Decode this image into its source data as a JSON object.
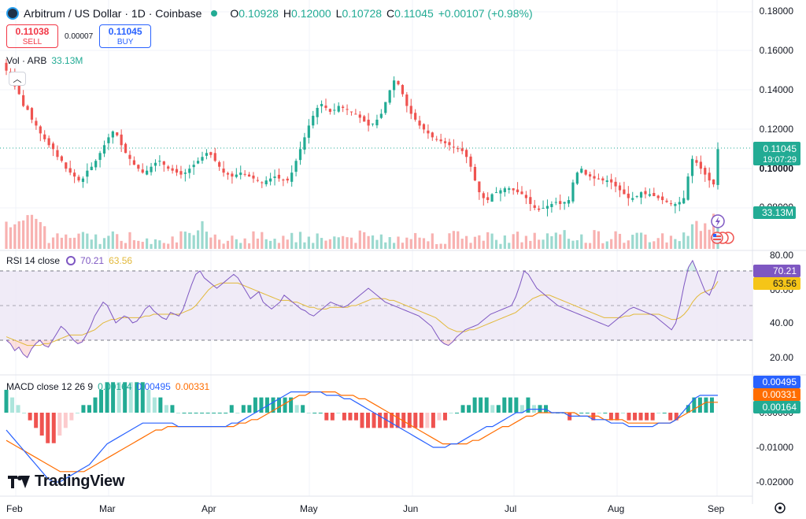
{
  "header": {
    "title": "Arbitrum / US Dollar · 1D · Coinbase",
    "open_label": "O",
    "open": "0.10928",
    "high_label": "H",
    "high": "0.12000",
    "low_label": "L",
    "low": "0.10728",
    "close_label": "C",
    "close": "0.11045",
    "change": "+0.00107 (+0.98%)"
  },
  "trade": {
    "sell_price": "0.11038",
    "sell_label": "SELL",
    "spread": "0.00007",
    "buy_price": "0.11045",
    "buy_label": "BUY"
  },
  "volume": {
    "label": "Vol · ARB",
    "value": "33.13M"
  },
  "rsi": {
    "label": "RSI 14 close",
    "rsi_value": "70.21",
    "ma_value": "63.56"
  },
  "macd": {
    "label": "MACD close 12 26 9",
    "hist": "0.00164",
    "macd": "0.00495",
    "signal": "0.00331"
  },
  "price_axis": {
    "ticks": [
      "0.18000",
      "0.16000",
      "0.14000",
      "0.12000",
      "0.10000",
      "0.08000"
    ],
    "last_price": "0.11045",
    "countdown": "19:07:29",
    "volume_tag": "33.13M"
  },
  "rsi_axis": {
    "ticks": [
      "80.00",
      "60.00",
      "40.00",
      "20.00"
    ],
    "rsi_tag": "70.21",
    "ma_tag": "63.56"
  },
  "macd_axis": {
    "ticks": [
      "0.00000",
      "-0.01000",
      "-0.02000"
    ],
    "macd_tag": "0.00495",
    "signal_tag": "0.00331",
    "hist_tag": "0.00164"
  },
  "time_axis": {
    "labels": [
      "Feb",
      "Mar",
      "Apr",
      "May",
      "Jun",
      "Jul",
      "Aug",
      "Sep"
    ]
  },
  "brand": {
    "name": "TradingView"
  },
  "colors": {
    "up": "#22ab94",
    "down": "#ef5350",
    "rsi": "#7e57c2",
    "rsi_ma": "#e2b93b",
    "macd": "#2962ff",
    "signal": "#ff6d00",
    "band": "#ede7f6"
  },
  "chart_data": [
    {
      "type": "candlestick",
      "title": "Arbitrum / US Dollar · 1D · Coinbase",
      "x_range": [
        "Feb",
        "Sep"
      ],
      "ylim": [
        0.08,
        0.18
      ],
      "approximate_daily_closes": [
        0.15,
        0.148,
        0.142,
        0.138,
        0.132,
        0.13,
        0.125,
        0.122,
        0.118,
        0.115,
        0.112,
        0.11,
        0.106,
        0.104,
        0.1,
        0.098,
        0.096,
        0.094,
        0.095,
        0.099,
        0.101,
        0.104,
        0.108,
        0.112,
        0.116,
        0.119,
        0.117,
        0.112,
        0.108,
        0.105,
        0.102,
        0.1,
        0.098,
        0.099,
        0.101,
        0.103,
        0.104,
        0.102,
        0.1,
        0.099,
        0.098,
        0.097,
        0.098,
        0.1,
        0.102,
        0.104,
        0.106,
        0.108,
        0.107,
        0.104,
        0.101,
        0.098,
        0.097,
        0.096,
        0.097,
        0.098,
        0.097,
        0.096,
        0.095,
        0.094,
        0.093,
        0.094,
        0.095,
        0.096,
        0.095,
        0.094,
        0.094,
        0.098,
        0.104,
        0.11,
        0.116,
        0.122,
        0.127,
        0.131,
        0.133,
        0.131,
        0.129,
        0.13,
        0.132,
        0.131,
        0.13,
        0.129,
        0.128,
        0.126,
        0.124,
        0.122,
        0.123,
        0.125,
        0.128,
        0.134,
        0.14,
        0.145,
        0.143,
        0.138,
        0.132,
        0.128,
        0.125,
        0.122,
        0.12,
        0.118,
        0.116,
        0.115,
        0.114,
        0.113,
        0.112,
        0.111,
        0.11,
        0.109,
        0.106,
        0.101,
        0.094,
        0.088,
        0.085,
        0.084,
        0.087,
        0.088,
        0.089,
        0.09,
        0.09,
        0.089,
        0.088,
        0.087,
        0.085,
        0.082,
        0.08,
        0.079,
        0.08,
        0.081,
        0.082,
        0.083,
        0.082,
        0.083,
        0.084,
        0.093,
        0.098,
        0.1,
        0.097,
        0.096,
        0.095,
        0.095,
        0.094,
        0.094,
        0.093,
        0.091,
        0.089,
        0.087,
        0.085,
        0.085,
        0.086,
        0.088,
        0.087,
        0.087,
        0.086,
        0.085,
        0.084,
        0.083,
        0.082,
        0.082,
        0.083,
        0.085,
        0.096,
        0.105,
        0.103,
        0.1,
        0.097,
        0.094,
        0.092,
        0.11
      ]
    },
    {
      "type": "line",
      "title": "RSI 14 close",
      "ylim": [
        15,
        85
      ],
      "series": [
        {
          "name": "RSI",
          "values": [
            30,
            28,
            24,
            26,
            22,
            20,
            25,
            28,
            30,
            27,
            26,
            30,
            34,
            38,
            36,
            33,
            30,
            28,
            29,
            33,
            38,
            44,
            48,
            52,
            50,
            45,
            40,
            42,
            44,
            43,
            40,
            41,
            44,
            48,
            50,
            47,
            45,
            43,
            42,
            46,
            45,
            44,
            48,
            55,
            62,
            68,
            70,
            66,
            64,
            62,
            60,
            62,
            64,
            66,
            68,
            66,
            62,
            58,
            54,
            56,
            58,
            52,
            50,
            48,
            50,
            52,
            56,
            54,
            52,
            50,
            48,
            47,
            45,
            44,
            46,
            48,
            50,
            52,
            51,
            50,
            49,
            50,
            52,
            54,
            56,
            58,
            60,
            58,
            56,
            54,
            52,
            51,
            50,
            49,
            48,
            47,
            46,
            45,
            44,
            42,
            40,
            38,
            34,
            30,
            28,
            27,
            29,
            32,
            34,
            36,
            37,
            38,
            39,
            41,
            43,
            45,
            46,
            47,
            48,
            49,
            50,
            55,
            62,
            70,
            68,
            64,
            60,
            58,
            56,
            54,
            52,
            50,
            49,
            48,
            47,
            46,
            45,
            44,
            43,
            42,
            41,
            40,
            39,
            38,
            40,
            42,
            44,
            46,
            48,
            49,
            48,
            47,
            46,
            45,
            44,
            42,
            40,
            38,
            36,
            40,
            50,
            62,
            72,
            76,
            70,
            64,
            58,
            56,
            62,
            70
          ]
        },
        {
          "name": "RSI-based MA",
          "values": [
            32,
            31,
            30,
            29,
            28,
            27,
            27,
            27,
            27,
            28,
            28,
            29,
            30,
            31,
            32,
            33,
            33,
            33,
            33,
            34,
            35,
            36,
            38,
            40,
            41,
            42,
            42,
            43,
            43,
            43,
            43,
            43,
            43,
            44,
            44,
            45,
            45,
            45,
            45,
            45,
            45,
            45,
            46,
            47,
            48,
            50,
            53,
            56,
            59,
            61,
            62,
            63,
            63,
            63,
            63,
            63,
            62,
            61,
            60,
            59,
            58,
            57,
            56,
            55,
            54,
            53,
            53,
            53,
            52,
            52,
            51,
            50,
            49,
            49,
            48,
            48,
            48,
            49,
            49,
            49,
            49,
            49,
            50,
            50,
            51,
            52,
            53,
            54,
            54,
            54,
            54,
            53,
            53,
            52,
            51,
            50,
            49,
            48,
            47,
            46,
            45,
            44,
            43,
            41,
            39,
            37,
            36,
            35,
            35,
            35,
            36,
            36,
            37,
            38,
            39,
            40,
            41,
            42,
            43,
            44,
            45,
            46,
            48,
            50,
            52,
            54,
            55,
            56,
            56,
            56,
            55,
            54,
            53,
            52,
            51,
            50,
            49,
            48,
            47,
            46,
            45,
            44,
            43,
            43,
            43,
            43,
            43,
            44,
            44,
            45,
            45,
            45,
            45,
            45,
            45,
            45,
            44,
            43,
            42,
            42,
            43,
            45,
            48,
            52,
            55,
            57,
            58,
            59,
            60,
            64
          ]
        }
      ]
    },
    {
      "type": "line",
      "title": "MACD close 12 26 9",
      "ylim": [
        -0.022,
        0.007
      ],
      "series": [
        {
          "name": "MACD",
          "values": [
            -0.005,
            -0.007,
            -0.009,
            -0.011,
            -0.013,
            -0.015,
            -0.017,
            -0.019,
            -0.02,
            -0.02,
            -0.019,
            -0.018,
            -0.017,
            -0.016,
            -0.015,
            -0.013,
            -0.011,
            -0.009,
            -0.008,
            -0.007,
            -0.006,
            -0.005,
            -0.004,
            -0.003,
            -0.003,
            -0.003,
            -0.003,
            -0.003,
            -0.003,
            -0.004,
            -0.004,
            -0.004,
            -0.004,
            -0.004,
            -0.004,
            -0.004,
            -0.004,
            -0.004,
            -0.003,
            -0.003,
            -0.002,
            -0.001,
            0.0,
            0.001,
            0.002,
            0.003,
            0.004,
            0.005,
            0.006,
            0.006,
            0.006,
            0.006,
            0.006,
            0.006,
            0.005,
            0.005,
            0.005,
            0.004,
            0.004,
            0.003,
            0.002,
            0.001,
            0.0,
            -0.001,
            -0.002,
            -0.003,
            -0.004,
            -0.005,
            -0.006,
            -0.007,
            -0.008,
            -0.009,
            -0.01,
            -0.01,
            -0.01,
            -0.009,
            -0.009,
            -0.008,
            -0.007,
            -0.006,
            -0.005,
            -0.004,
            -0.004,
            -0.003,
            -0.002,
            -0.001,
            0.0,
            0.0,
            0.001,
            0.001,
            0.001,
            0.001,
            0.0,
            0.0,
            0.0,
            -0.001,
            -0.001,
            -0.001,
            -0.001,
            -0.002,
            -0.002,
            -0.002,
            -0.003,
            -0.003,
            -0.003,
            -0.004,
            -0.004,
            -0.004,
            -0.004,
            -0.004,
            -0.003,
            -0.003,
            -0.003,
            -0.002,
            0.0,
            0.002,
            0.004,
            0.005,
            0.005,
            0.005,
            0.005
          ]
        },
        {
          "name": "Signal",
          "values": [
            -0.008,
            -0.009,
            -0.01,
            -0.011,
            -0.012,
            -0.013,
            -0.014,
            -0.015,
            -0.016,
            -0.017,
            -0.017,
            -0.017,
            -0.017,
            -0.017,
            -0.016,
            -0.015,
            -0.014,
            -0.013,
            -0.012,
            -0.011,
            -0.01,
            -0.009,
            -0.008,
            -0.007,
            -0.006,
            -0.005,
            -0.005,
            -0.004,
            -0.004,
            -0.004,
            -0.004,
            -0.004,
            -0.004,
            -0.004,
            -0.004,
            -0.004,
            -0.004,
            -0.004,
            -0.004,
            -0.003,
            -0.003,
            -0.002,
            -0.002,
            -0.001,
            0.0,
            0.001,
            0.002,
            0.003,
            0.004,
            0.005,
            0.005,
            0.006,
            0.006,
            0.006,
            0.006,
            0.006,
            0.005,
            0.005,
            0.005,
            0.004,
            0.004,
            0.003,
            0.002,
            0.001,
            0.0,
            -0.001,
            -0.002,
            -0.003,
            -0.004,
            -0.005,
            -0.006,
            -0.007,
            -0.008,
            -0.009,
            -0.009,
            -0.009,
            -0.009,
            -0.009,
            -0.008,
            -0.008,
            -0.007,
            -0.006,
            -0.005,
            -0.004,
            -0.004,
            -0.003,
            -0.002,
            -0.001,
            -0.001,
            0.0,
            0.0,
            0.0,
            0.0,
            0.0,
            0.0,
            0.0,
            -0.001,
            -0.001,
            -0.001,
            -0.001,
            -0.002,
            -0.002,
            -0.002,
            -0.002,
            -0.003,
            -0.003,
            -0.003,
            -0.003,
            -0.003,
            -0.003,
            -0.003,
            -0.003,
            -0.002,
            -0.001,
            0.0,
            0.001,
            0.002,
            0.003,
            0.003,
            0.003
          ]
        }
      ]
    }
  ]
}
